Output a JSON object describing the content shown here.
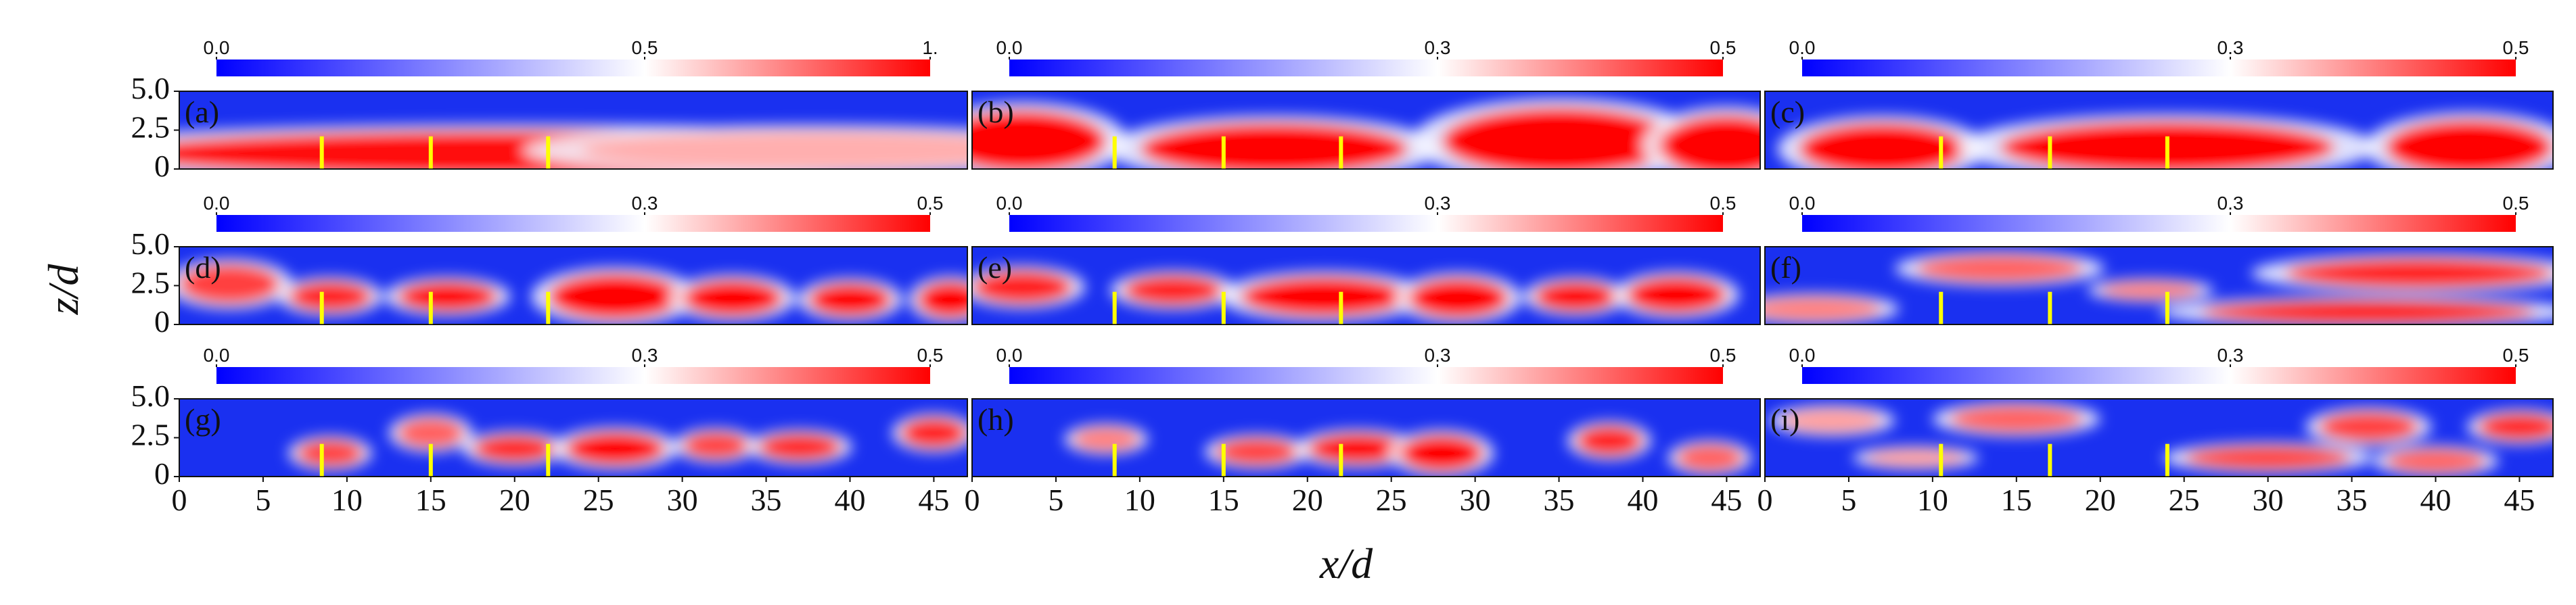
{
  "chart_data": {
    "type": "heatmap",
    "xlabel": "x/d",
    "ylabel": "z/d",
    "xlim": [
      0,
      47
    ],
    "ylim": [
      0,
      5
    ],
    "x_ticks": [
      "0",
      "5",
      "10",
      "15",
      "20",
      "25",
      "30",
      "35",
      "40",
      "45"
    ],
    "y_ticks": [
      "0",
      "2.5",
      "5.0"
    ],
    "colors": {
      "low": "#0000ff",
      "mid": "#ffffff",
      "high": "#ff0000",
      "marker": "#ffff00"
    },
    "panels": [
      {
        "label": "(a)",
        "colorbar": {
          "min_label": "0.0",
          "mid_label": "0.5",
          "max_label": "1.",
          "max": 1.0
        },
        "turbine_x": [
          8.5,
          15,
          22
        ],
        "blobs": [
          {
            "cx": 20,
            "cz": 1.0,
            "rx": 24,
            "rz": 1.5,
            "v": 0.95
          },
          {
            "cx": 38,
            "cz": 1.2,
            "rx": 14,
            "rz": 1.3,
            "v": 0.45
          }
        ]
      },
      {
        "label": "(b)",
        "colorbar": {
          "min_label": "0.0",
          "mid_label": "0.3",
          "max_label": "0.5",
          "max": 0.5
        },
        "turbine_x": [
          8.5,
          15,
          22
        ],
        "blobs": [
          {
            "cx": 3,
            "cz": 1.8,
            "rx": 5,
            "rz": 2.0,
            "v": 0.75
          },
          {
            "cx": 18,
            "cz": 1.3,
            "rx": 8,
            "rz": 1.7,
            "v": 0.75
          },
          {
            "cx": 35,
            "cz": 1.8,
            "rx": 7,
            "rz": 2.2,
            "v": 0.8
          },
          {
            "cx": 45,
            "cz": 1.5,
            "rx": 4,
            "rz": 2.0,
            "v": 0.7
          }
        ]
      },
      {
        "label": "(c)",
        "colorbar": {
          "min_label": "0.0",
          "mid_label": "0.3",
          "max_label": "0.5",
          "max": 0.5
        },
        "turbine_x": [
          10.5,
          17,
          24
        ],
        "blobs": [
          {
            "cx": 7,
            "cz": 1.3,
            "rx": 5,
            "rz": 1.7,
            "v": 0.75
          },
          {
            "cx": 24,
            "cz": 1.4,
            "rx": 10,
            "rz": 1.7,
            "v": 0.8
          },
          {
            "cx": 42,
            "cz": 1.4,
            "rx": 5,
            "rz": 1.8,
            "v": 0.75
          }
        ]
      },
      {
        "label": "(d)",
        "colorbar": {
          "min_label": "0.0",
          "mid_label": "0.3",
          "max_label": "0.5",
          "max": 0.5
        },
        "turbine_x": [
          8.5,
          15,
          22
        ],
        "blobs": [
          {
            "cx": 3,
            "cz": 2.6,
            "rx": 3,
            "rz": 1.3,
            "v": 0.4
          },
          {
            "cx": 9,
            "cz": 1.8,
            "rx": 2.5,
            "rz": 1.0,
            "v": 0.45
          },
          {
            "cx": 16,
            "cz": 1.8,
            "rx": 3,
            "rz": 1.0,
            "v": 0.5
          },
          {
            "cx": 26,
            "cz": 1.8,
            "rx": 4,
            "rz": 1.5,
            "v": 0.75
          },
          {
            "cx": 33,
            "cz": 1.7,
            "rx": 3,
            "rz": 1.2,
            "v": 0.6
          },
          {
            "cx": 40,
            "cz": 1.6,
            "rx": 2.5,
            "rz": 1.1,
            "v": 0.5
          },
          {
            "cx": 46,
            "cz": 1.6,
            "rx": 2,
            "rz": 1.2,
            "v": 0.5
          }
        ]
      },
      {
        "label": "(e)",
        "colorbar": {
          "min_label": "0.0",
          "mid_label": "0.3",
          "max_label": "0.5",
          "max": 0.5
        },
        "turbine_x": [
          8.5,
          15,
          22
        ],
        "blobs": [
          {
            "cx": 3,
            "cz": 2.4,
            "rx": 3,
            "rz": 1.1,
            "v": 0.45
          },
          {
            "cx": 12,
            "cz": 2.2,
            "rx": 3,
            "rz": 1.0,
            "v": 0.45
          },
          {
            "cx": 21,
            "cz": 1.8,
            "rx": 5,
            "rz": 1.3,
            "v": 0.7
          },
          {
            "cx": 29,
            "cz": 1.7,
            "rx": 3,
            "rz": 1.3,
            "v": 0.7
          },
          {
            "cx": 36,
            "cz": 1.8,
            "rx": 2.5,
            "rz": 1.0,
            "v": 0.5
          },
          {
            "cx": 42,
            "cz": 1.9,
            "rx": 3,
            "rz": 1.2,
            "v": 0.55
          }
        ]
      },
      {
        "label": "(f)",
        "colorbar": {
          "min_label": "0.0",
          "mid_label": "0.3",
          "max_label": "0.5",
          "max": 0.5
        },
        "turbine_x": [
          10.5,
          17,
          24
        ],
        "blobs": [
          {
            "cx": 14,
            "cz": 3.6,
            "rx": 5,
            "rz": 0.9,
            "v": 0.35
          },
          {
            "cx": 3,
            "cz": 1.0,
            "rx": 4,
            "rz": 0.8,
            "v": 0.3
          },
          {
            "cx": 23,
            "cz": 2.2,
            "rx": 3,
            "rz": 0.6,
            "v": 0.3
          },
          {
            "cx": 36,
            "cz": 0.8,
            "rx": 10,
            "rz": 0.8,
            "v": 0.5
          },
          {
            "cx": 39,
            "cz": 3.3,
            "rx": 8,
            "rz": 1.0,
            "v": 0.45
          }
        ]
      },
      {
        "label": "(g)",
        "colorbar": {
          "min_label": "0.0",
          "mid_label": "0.3",
          "max_label": "0.5",
          "max": 0.5
        },
        "turbine_x": [
          8.5,
          15,
          22
        ],
        "blobs": [
          {
            "cx": 9,
            "cz": 1.5,
            "rx": 2,
            "rz": 0.9,
            "v": 0.4
          },
          {
            "cx": 15,
            "cz": 2.8,
            "rx": 2,
            "rz": 1.0,
            "v": 0.35
          },
          {
            "cx": 20,
            "cz": 1.8,
            "rx": 2.5,
            "rz": 0.9,
            "v": 0.45
          },
          {
            "cx": 26,
            "cz": 1.8,
            "rx": 3,
            "rz": 1.1,
            "v": 0.6
          },
          {
            "cx": 32,
            "cz": 2.0,
            "rx": 2,
            "rz": 0.9,
            "v": 0.4
          },
          {
            "cx": 37,
            "cz": 1.9,
            "rx": 2.5,
            "rz": 0.9,
            "v": 0.45
          },
          {
            "cx": 45,
            "cz": 2.8,
            "rx": 2,
            "rz": 1.0,
            "v": 0.45
          }
        ]
      },
      {
        "label": "(h)",
        "colorbar": {
          "min_label": "0.0",
          "mid_label": "0.3",
          "max_label": "0.5",
          "max": 0.5
        },
        "turbine_x": [
          8.5,
          15,
          22
        ],
        "blobs": [
          {
            "cx": 8,
            "cz": 2.4,
            "rx": 2,
            "rz": 0.8,
            "v": 0.3
          },
          {
            "cx": 17,
            "cz": 1.6,
            "rx": 2.5,
            "rz": 0.9,
            "v": 0.4
          },
          {
            "cx": 23,
            "cz": 1.8,
            "rx": 3,
            "rz": 1.0,
            "v": 0.5
          },
          {
            "cx": 28,
            "cz": 1.5,
            "rx": 2.5,
            "rz": 1.2,
            "v": 0.7
          },
          {
            "cx": 38,
            "cz": 2.3,
            "rx": 2,
            "rz": 1.0,
            "v": 0.45
          },
          {
            "cx": 44,
            "cz": 1.2,
            "rx": 2,
            "rz": 0.9,
            "v": 0.35
          }
        ]
      },
      {
        "label": "(i)",
        "colorbar": {
          "min_label": "0.0",
          "mid_label": "0.3",
          "max_label": "0.5",
          "max": 0.5
        },
        "turbine_x": [
          10.5,
          17,
          24
        ],
        "blobs": [
          {
            "cx": 4,
            "cz": 3.6,
            "rx": 3,
            "rz": 0.8,
            "v": 0.25
          },
          {
            "cx": 15,
            "cz": 3.7,
            "rx": 4,
            "rz": 0.9,
            "v": 0.35
          },
          {
            "cx": 9,
            "cz": 1.2,
            "rx": 3,
            "rz": 0.6,
            "v": 0.25
          },
          {
            "cx": 30,
            "cz": 1.2,
            "rx": 5,
            "rz": 0.8,
            "v": 0.4
          },
          {
            "cx": 36,
            "cz": 3.2,
            "rx": 3,
            "rz": 1.0,
            "v": 0.4
          },
          {
            "cx": 45,
            "cz": 3.2,
            "rx": 2.5,
            "rz": 0.9,
            "v": 0.45
          },
          {
            "cx": 40,
            "cz": 1.0,
            "rx": 3,
            "rz": 0.8,
            "v": 0.35
          }
        ]
      }
    ]
  }
}
